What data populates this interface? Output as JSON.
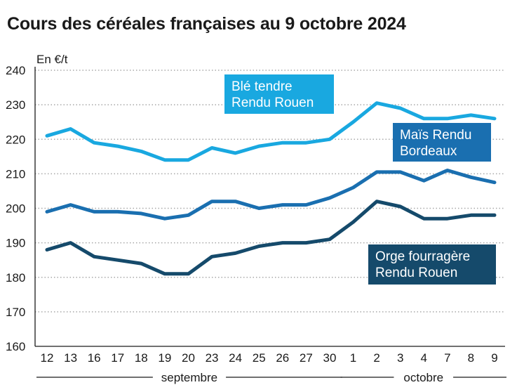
{
  "chart_data": {
    "type": "line",
    "title": "Cours des céréales françaises au 9 octobre 2024",
    "ylabel": "En €/t",
    "ylim": [
      160,
      240
    ],
    "yticks": [
      160,
      170,
      180,
      190,
      200,
      210,
      220,
      230,
      240
    ],
    "grid": true,
    "categories": [
      "12",
      "13",
      "16",
      "17",
      "18",
      "19",
      "20",
      "23",
      "24",
      "25",
      "26",
      "27",
      "30",
      "1",
      "2",
      "3",
      "4",
      "7",
      "8",
      "9"
    ],
    "month_groups": [
      {
        "label": "septembre",
        "start": 0,
        "end": 12
      },
      {
        "label": "octobre",
        "start": 13,
        "end": 19
      }
    ],
    "series": [
      {
        "name": "Blé tendre Rendu Rouen",
        "label_lines": [
          "Blé tendre",
          "Rendu Rouen"
        ],
        "color": "#19a8e0",
        "values": [
          221,
          223,
          219,
          218,
          216.5,
          214,
          214,
          217.5,
          216,
          218,
          219,
          219,
          220,
          225,
          230.5,
          229,
          226,
          226,
          227,
          226
        ]
      },
      {
        "name": "Maïs Rendu Bordeaux",
        "label_lines": [
          "Maïs Rendu",
          "Bordeaux"
        ],
        "color": "#1a6fb0",
        "values": [
          199,
          201,
          199,
          199,
          198.5,
          197,
          198,
          202,
          202,
          200,
          201,
          201,
          203,
          206,
          210.5,
          210.5,
          208,
          211,
          209,
          207.5
        ]
      },
      {
        "name": "Orge fourragère Rendu Rouen",
        "label_lines": [
          "Orge fourragère",
          "Rendu Rouen"
        ],
        "color": "#154a6b",
        "values": [
          188,
          190,
          186,
          185,
          184,
          181,
          181,
          186,
          187,
          189,
          190,
          190,
          191,
          196,
          202,
          200.5,
          197,
          197,
          198,
          198
        ]
      }
    ]
  }
}
